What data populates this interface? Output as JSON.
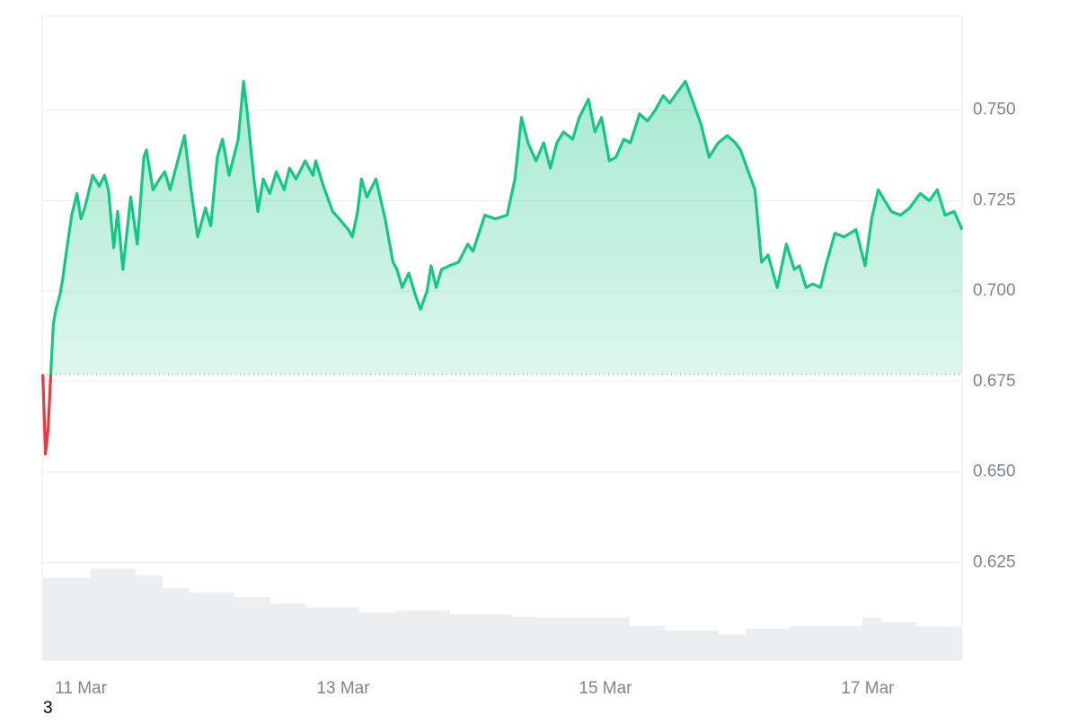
{
  "chart_data": {
    "type": "area",
    "x": [
      10.71,
      10.73,
      10.75,
      10.77,
      10.79,
      10.81,
      10.84,
      10.86,
      10.89,
      10.93,
      10.97,
      11.0,
      11.03,
      11.09,
      11.14,
      11.18,
      11.21,
      11.25,
      11.28,
      11.32,
      11.38,
      11.43,
      11.48,
      11.5,
      11.55,
      11.6,
      11.64,
      11.68,
      11.79,
      11.84,
      11.89,
      11.95,
      11.99,
      12.04,
      12.08,
      12.13,
      12.2,
      12.24,
      12.27,
      12.32,
      12.35,
      12.39,
      12.44,
      12.49,
      12.55,
      12.59,
      12.64,
      12.71,
      12.77,
      12.79,
      12.85,
      12.92,
      12.97,
      13.04,
      13.07,
      13.11,
      13.14,
      13.18,
      13.25,
      13.32,
      13.38,
      13.41,
      13.45,
      13.5,
      13.55,
      13.59,
      13.64,
      13.67,
      13.71,
      13.75,
      13.81,
      13.88,
      13.95,
      13.99,
      14.08,
      14.16,
      14.25,
      14.31,
      14.36,
      14.41,
      14.47,
      14.53,
      14.58,
      14.63,
      14.68,
      14.75,
      14.8,
      14.87,
      14.92,
      14.97,
      15.03,
      15.08,
      15.14,
      15.19,
      15.26,
      15.32,
      15.38,
      15.44,
      15.49,
      15.53,
      15.61,
      15.67,
      15.73,
      15.79,
      15.86,
      15.93,
      15.99,
      16.03,
      16.08,
      16.14,
      16.19,
      16.24,
      16.31,
      16.38,
      16.44,
      16.48,
      16.53,
      16.58,
      16.64,
      16.68,
      16.75,
      16.82,
      16.91,
      16.98,
      17.03,
      17.08,
      17.13,
      17.18,
      17.25,
      17.32,
      17.4,
      17.47,
      17.53,
      17.59,
      17.66,
      17.72
    ],
    "series": [
      {
        "color": "#16c784",
        "down_color": "#ea3943",
        "values": [
          0.677,
          0.655,
          0.662,
          0.677,
          0.691,
          0.695,
          0.699,
          0.703,
          0.711,
          0.721,
          0.727,
          0.72,
          0.723,
          0.732,
          0.729,
          0.732,
          0.728,
          0.712,
          0.722,
          0.706,
          0.726,
          0.713,
          0.737,
          0.739,
          0.728,
          0.731,
          0.733,
          0.728,
          0.743,
          0.728,
          0.715,
          0.723,
          0.718,
          0.737,
          0.742,
          0.732,
          0.742,
          0.758,
          0.749,
          0.731,
          0.722,
          0.731,
          0.727,
          0.733,
          0.728,
          0.734,
          0.731,
          0.736,
          0.732,
          0.736,
          0.729,
          0.722,
          0.72,
          0.717,
          0.715,
          0.722,
          0.731,
          0.726,
          0.731,
          0.72,
          0.708,
          0.706,
          0.701,
          0.705,
          0.699,
          0.695,
          0.7,
          0.707,
          0.701,
          0.706,
          0.707,
          0.708,
          0.713,
          0.711,
          0.721,
          0.72,
          0.721,
          0.731,
          0.748,
          0.741,
          0.736,
          0.741,
          0.734,
          0.741,
          0.744,
          0.742,
          0.748,
          0.753,
          0.744,
          0.748,
          0.736,
          0.737,
          0.742,
          0.741,
          0.749,
          0.747,
          0.75,
          0.754,
          0.752,
          0.754,
          0.758,
          0.752,
          0.746,
          0.737,
          0.741,
          0.743,
          0.741,
          0.739,
          0.734,
          0.728,
          0.708,
          0.71,
          0.701,
          0.713,
          0.706,
          0.707,
          0.701,
          0.702,
          0.701,
          0.707,
          0.716,
          0.715,
          0.717,
          0.707,
          0.72,
          0.728,
          0.725,
          0.722,
          0.721,
          0.723,
          0.727,
          0.725,
          0.728,
          0.721,
          0.722,
          0.717
        ]
      }
    ],
    "baseline": 0.677,
    "volume": {
      "color": "#eceff2",
      "ylim": [
        0,
        100
      ],
      "x": [
        10.71,
        11.07,
        11.41,
        11.62,
        11.82,
        12.16,
        12.44,
        12.71,
        13.12,
        13.4,
        13.81,
        14.29,
        14.49,
        15.18,
        15.45,
        15.86,
        16.07,
        16.41,
        16.96,
        17.1,
        17.37,
        17.64
      ],
      "values": [
        12.8,
        14.2,
        13.2,
        11.2,
        10.5,
        9.8,
        8.8,
        8.2,
        7.4,
        7.7,
        7.1,
        6.7,
        6.6,
        5.3,
        4.6,
        4.0,
        4.9,
        5.3,
        6.6,
        5.9,
        5.2,
        5.2
      ]
    },
    "xlim": [
      10.705,
      17.72
    ],
    "xticks": [
      {
        "value": 11,
        "label": "11 Mar"
      },
      {
        "value": 13,
        "label": "13 Mar"
      },
      {
        "value": 15,
        "label": "15 Mar"
      },
      {
        "value": 17,
        "label": "17 Mar"
      }
    ],
    "ylim": [
      0.598,
      0.776
    ],
    "yticks": [
      0.625,
      {
        "value": 0.65,
        "label": "0.650"
      },
      0.675,
      {
        "value": 0.7,
        "label": "0.700"
      },
      0.725,
      {
        "value": 0.75,
        "label": "0.750"
      }
    ],
    "grid": true,
    "footnote": "3"
  }
}
